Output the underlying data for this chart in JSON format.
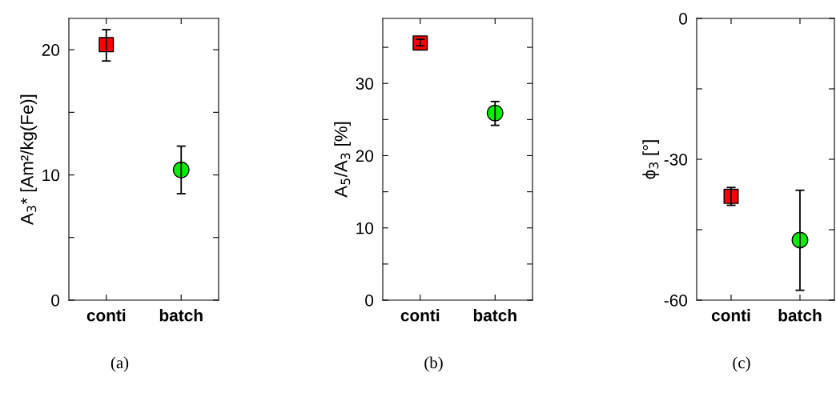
{
  "chart_data": [
    {
      "type": "scatter",
      "ylabel": "A$_{3}$* [Am²/kg(Fe)]",
      "categories": [
        "conti",
        "batch"
      ],
      "ylim": [
        0,
        22.5
      ],
      "yticks": [
        0,
        {
          "value": 5,
          "label": null
        },
        10,
        {
          "value": 15,
          "label": null
        },
        20
      ],
      "grid": false,
      "annotations": [
        "(a)"
      ],
      "series": [
        {
          "color": "#ff0000",
          "marker": "square",
          "values": [
            20.4,
            null
          ],
          "errors": [
            [
              19.1,
              21.6
            ],
            null
          ]
        },
        {
          "color": "#00ee00",
          "marker": "circle",
          "values": [
            null,
            10.4
          ],
          "errors": [
            null,
            [
              8.5,
              12.3
            ]
          ]
        }
      ]
    },
    {
      "type": "scatter",
      "ylabel": "A$_{5}$/A$_{3}$ [%]",
      "categories": [
        "conti",
        "batch"
      ],
      "ylim": [
        0,
        39
      ],
      "yticks": [
        0,
        {
          "value": 5,
          "label": null
        },
        10,
        {
          "value": 15,
          "label": null
        },
        20,
        {
          "value": 25,
          "label": null
        },
        30,
        {
          "value": 35,
          "label": null
        }
      ],
      "grid": false,
      "annotations": [
        "(b)"
      ],
      "series": [
        {
          "color": "#ff0000",
          "marker": "square",
          "values": [
            35.6,
            null
          ],
          "errors": [
            [
              35.2,
              36.1
            ],
            null
          ]
        },
        {
          "color": "#00ee00",
          "marker": "circle",
          "values": [
            null,
            25.9
          ],
          "errors": [
            null,
            [
              24.2,
              27.5
            ]
          ]
        }
      ]
    },
    {
      "type": "scatter",
      "ylabel": "ϕ$_{3}$ [°]",
      "categories": [
        "conti",
        "batch"
      ],
      "ylim": [
        -60,
        0
      ],
      "yticks": [
        -60,
        {
          "value": -45,
          "label": null
        },
        -30,
        {
          "value": -15,
          "label": null
        },
        0
      ],
      "grid": false,
      "annotations": [
        "(c)"
      ],
      "series": [
        {
          "color": "#ff0000",
          "marker": "square",
          "values": [
            -37.9,
            null
          ],
          "errors": [
            [
              -39.8,
              -36.0
            ],
            null
          ]
        },
        {
          "color": "#00ee00",
          "marker": "circle",
          "values": [
            null,
            -47.2
          ],
          "errors": [
            null,
            [
              -57.9,
              -36.6
            ]
          ]
        }
      ]
    }
  ]
}
